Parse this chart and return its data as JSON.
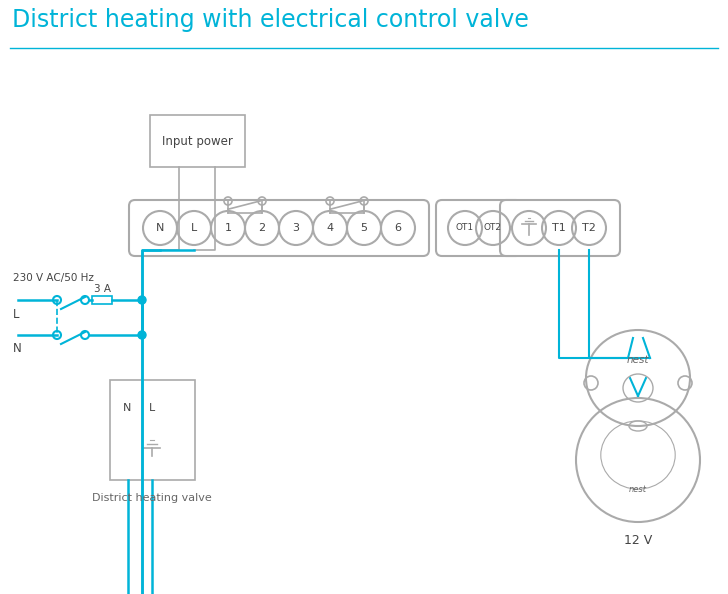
{
  "title": "District heating with electrical control valve",
  "title_color": "#00b4d8",
  "title_fontsize": 17,
  "bg_color": "#ffffff",
  "wire_color": "#00b4d8",
  "gray_color": "#aaaaaa",
  "text_color": "#666666",
  "dark_text": "#444444",
  "terminal_labels": [
    "N",
    "L",
    "1",
    "2",
    "3",
    "4",
    "5",
    "6"
  ],
  "ot_labels": [
    "OT1",
    "OT2"
  ],
  "t_labels": [
    "T1",
    "T2"
  ],
  "input_power_label": "Input power",
  "district_heating_label": "District heating valve",
  "voltage_label": "230 V AC/50 Hz",
  "fuse_label": "3 A",
  "l_label": "L",
  "n_label": "N",
  "nest_label": "12 V"
}
